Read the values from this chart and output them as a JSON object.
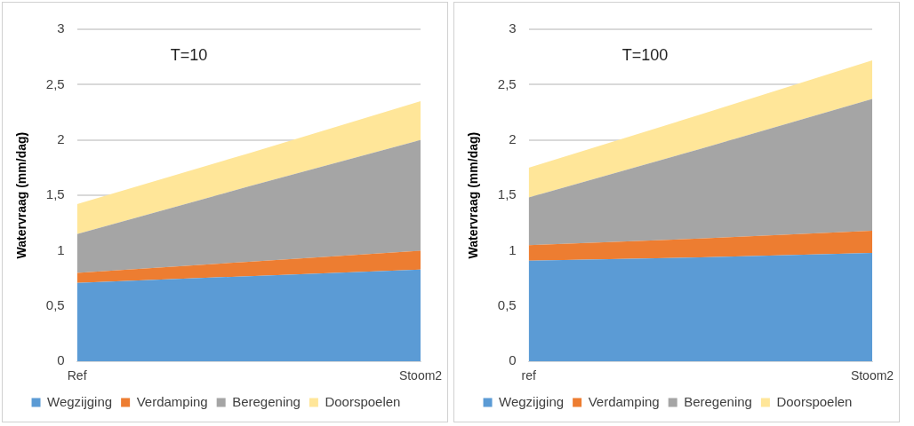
{
  "chart_data": [
    {
      "type": "area",
      "stacked": true,
      "annotations": [
        "T=10"
      ],
      "ylabel": "Watervraag (mm/dag)",
      "categories": [
        "Ref",
        null,
        "Stoom2"
      ],
      "ylim": [
        0,
        3
      ],
      "yticks": [
        0,
        {
          "value": 0.5,
          "label": "0,5"
        },
        1,
        {
          "value": 1.5,
          "label": "1,5"
        },
        2,
        {
          "value": 2.5,
          "label": "2,5"
        },
        3
      ],
      "grid": "y",
      "legend": "bottom",
      "series": [
        {
          "name": "Wegzijging",
          "color": "#5b9bd5",
          "values": [
            0.71,
            0.77,
            0.83
          ]
        },
        {
          "name": "Verdamping",
          "color": "#ed7d31",
          "values": [
            0.09,
            0.13,
            0.17
          ]
        },
        {
          "name": "Beregening",
          "color": "#a5a5a5",
          "values": [
            0.35,
            0.68,
            1.0
          ]
        },
        {
          "name": "Doorspoelen",
          "color": "#ffe699",
          "values": [
            0.27,
            0.3,
            0.35
          ]
        }
      ]
    },
    {
      "type": "area",
      "stacked": true,
      "annotations": [
        "T=100"
      ],
      "ylabel": "Watervraag (mm/dag)",
      "categories": [
        "ref",
        null,
        "Stoom2"
      ],
      "ylim": [
        0,
        3
      ],
      "yticks": [
        0,
        {
          "value": 0.5,
          "label": "0,5"
        },
        1,
        {
          "value": 1.5,
          "label": "1,5"
        },
        2,
        {
          "value": 2.5,
          "label": "2,5"
        },
        3
      ],
      "grid": "y",
      "legend": "bottom",
      "series": [
        {
          "name": "Wegzijging",
          "color": "#5b9bd5",
          "values": [
            0.91,
            0.94,
            0.98
          ]
        },
        {
          "name": "Verdamping",
          "color": "#ed7d31",
          "values": [
            0.14,
            0.17,
            0.2
          ]
        },
        {
          "name": "Beregening",
          "color": "#a5a5a5",
          "values": [
            0.43,
            0.81,
            1.19
          ]
        },
        {
          "name": "Doorspoelen",
          "color": "#ffe699",
          "values": [
            0.27,
            0.31,
            0.35
          ]
        }
      ]
    }
  ]
}
